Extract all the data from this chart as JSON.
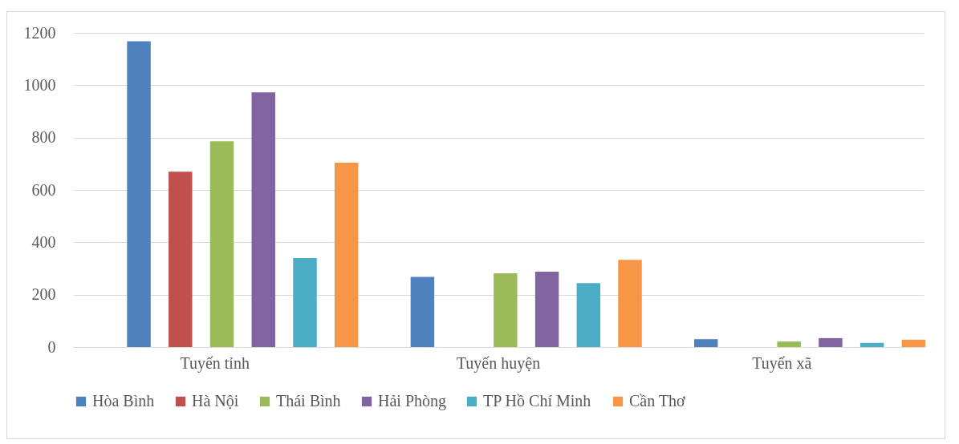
{
  "chart_data": {
    "type": "bar",
    "categories": [
      "Tuyến tỉnh",
      "Tuyến huyện",
      "Tuyến xã"
    ],
    "series": [
      {
        "name": "Hòa Bình",
        "color": "#4f81bd",
        "values": [
          1168,
          268,
          30
        ]
      },
      {
        "name": "Hà Nội",
        "color": "#c0504d",
        "values": [
          670,
          null,
          null
        ]
      },
      {
        "name": "Thái Bình",
        "color": "#9bbb59",
        "values": [
          786,
          282,
          21
        ]
      },
      {
        "name": "Hải Phòng",
        "color": "#8064a2",
        "values": [
          973,
          288,
          34
        ]
      },
      {
        "name": "TP Hồ Chí Minh",
        "color": "#4bacc6",
        "values": [
          340,
          244,
          16
        ]
      },
      {
        "name": "Cần Thơ",
        "color": "#f79646",
        "values": [
          704,
          333,
          28
        ]
      }
    ],
    "ylim": [
      0,
      1200
    ],
    "yticks": [
      0,
      200,
      400,
      600,
      800,
      1000,
      1200
    ],
    "grid": "y",
    "legend": "bottom"
  }
}
